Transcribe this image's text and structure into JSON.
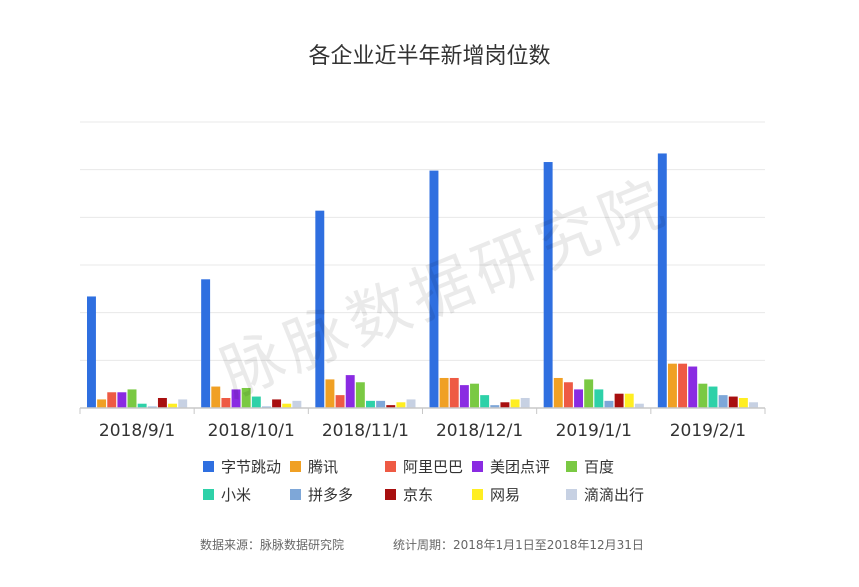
{
  "chart_data": {
    "type": "bar",
    "title": "各企业近半年新增岗位数",
    "xlabel": "",
    "ylabel": "",
    "categories": [
      "2018/9/1",
      "2018/10/1",
      "2018/11/1",
      "2018/12/1",
      "2019/1/1",
      "2019/2/1"
    ],
    "ylim": [
      0,
      100
    ],
    "grid": true,
    "legend_position": "bottom",
    "series": [
      {
        "name": "字节跳动",
        "color": "#2f6fe0",
        "values": [
          39,
          45,
          69,
          83,
          86,
          89
        ]
      },
      {
        "name": "腾讯",
        "color": "#f0a024",
        "values": [
          3,
          7.5,
          10,
          10.5,
          10.5,
          15.5
        ]
      },
      {
        "name": "阿里巴巴",
        "color": "#ee5a44",
        "values": [
          5.5,
          3.5,
          4.5,
          10.5,
          9,
          15.5
        ]
      },
      {
        "name": "美团点评",
        "color": "#8a2be2",
        "values": [
          5.5,
          6.5,
          11.5,
          8,
          6.5,
          14.5
        ]
      },
      {
        "name": "百度",
        "color": "#7ac943",
        "values": [
          6.5,
          7,
          9,
          8.5,
          10,
          8.5
        ]
      },
      {
        "name": "小米",
        "color": "#2ed1a8",
        "values": [
          1.5,
          4,
          2.5,
          4.5,
          6.5,
          7.5
        ]
      },
      {
        "name": "拼多多",
        "color": "#7ea7d8",
        "values": [
          0.5,
          0.5,
          2.5,
          1,
          2.5,
          4.5
        ]
      },
      {
        "name": "京东",
        "color": "#a80f0f",
        "values": [
          3.5,
          3,
          1,
          2,
          5,
          4
        ]
      },
      {
        "name": "网易",
        "color": "#ffee22",
        "values": [
          1.5,
          1.5,
          2,
          3,
          5,
          3.5
        ]
      },
      {
        "name": "滴滴出行",
        "color": "#c7d1e3",
        "values": [
          3,
          2.5,
          3,
          3.5,
          1.5,
          2
        ]
      }
    ]
  },
  "watermark": "脉脉数据研究院",
  "footer": {
    "source": "数据来源：脉脉数据研究院",
    "period": "统计周期：2018年1月1日至2018年12月31日"
  }
}
